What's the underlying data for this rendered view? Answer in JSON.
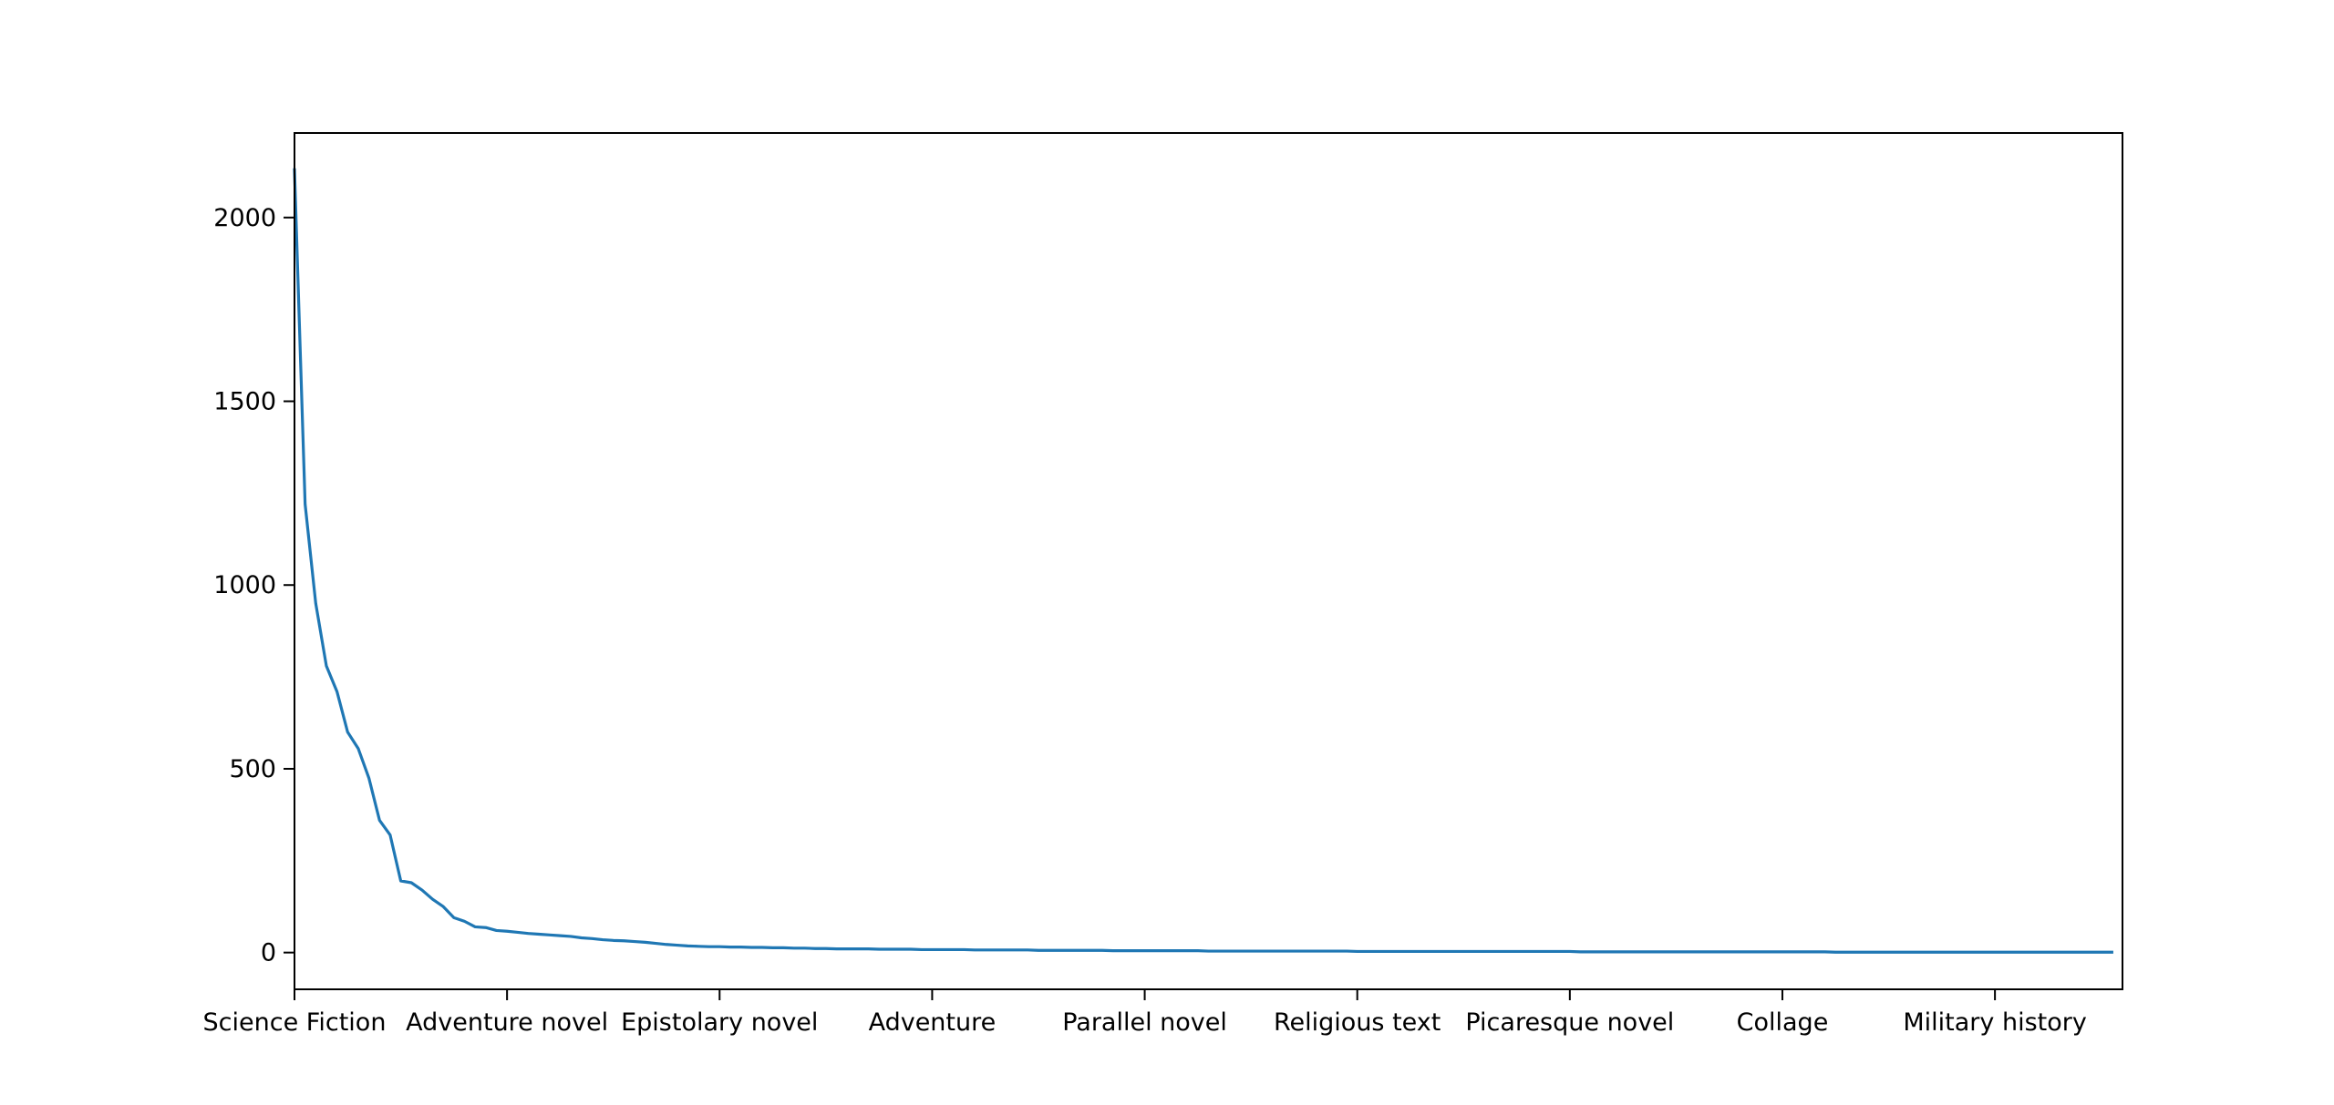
{
  "chart_data": {
    "type": "line",
    "title": "",
    "xlabel": "",
    "ylabel": "",
    "x_tick_labels": [
      "Science Fiction",
      "Adventure novel",
      "Epistolary novel",
      "Adventure",
      "Parallel novel",
      "Religious text",
      "Picaresque novel",
      "Collage",
      "Military history"
    ],
    "x_tick_positions": [
      0,
      20,
      40,
      60,
      80,
      100,
      120,
      140,
      160
    ],
    "xlim": [
      0,
      172
    ],
    "ylim": [
      -100,
      2230
    ],
    "y_ticks": [
      0,
      500,
      1000,
      1500,
      2000
    ],
    "grid": false,
    "line_color": "#1f77b4",
    "series": [
      {
        "values": [
          2130,
          1220,
          950,
          780,
          710,
          600,
          555,
          475,
          360,
          320,
          195,
          190,
          170,
          145,
          125,
          95,
          85,
          70,
          68,
          60,
          58,
          55,
          52,
          50,
          48,
          46,
          44,
          40,
          38,
          35,
          33,
          32,
          30,
          28,
          25,
          22,
          20,
          18,
          17,
          16,
          16,
          15,
          15,
          14,
          14,
          13,
          13,
          12,
          12,
          11,
          11,
          10,
          10,
          10,
          10,
          9,
          9,
          9,
          9,
          8,
          8,
          8,
          8,
          8,
          7,
          7,
          7,
          7,
          7,
          7,
          6,
          6,
          6,
          6,
          6,
          6,
          6,
          5,
          5,
          5,
          5,
          5,
          5,
          5,
          5,
          5,
          4,
          4,
          4,
          4,
          4,
          4,
          4,
          4,
          4,
          4,
          4,
          4,
          4,
          4,
          3,
          3,
          3,
          3,
          3,
          3,
          3,
          3,
          3,
          3,
          3,
          3,
          3,
          3,
          3,
          3,
          3,
          3,
          3,
          3,
          3,
          2,
          2,
          2,
          2,
          2,
          2,
          2,
          2,
          2,
          2,
          2,
          2,
          2,
          2,
          2,
          2,
          2,
          2,
          2,
          2,
          2,
          2,
          2,
          2,
          1,
          1,
          1,
          1,
          1,
          1,
          1,
          1,
          1,
          1,
          1,
          1,
          1,
          1,
          1,
          1,
          1,
          1,
          1,
          1,
          1,
          1,
          1,
          1,
          1,
          1,
          1
        ]
      }
    ]
  }
}
